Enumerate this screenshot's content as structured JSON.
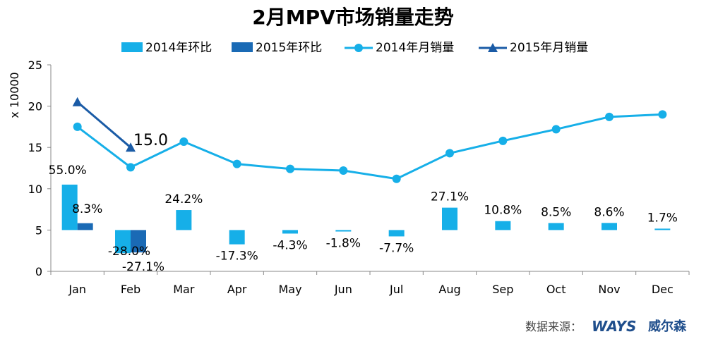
{
  "chart_data": {
    "type": "bar",
    "title": "2月MPV市场销量走势",
    "ylabel": "x 10000",
    "xlabel": "",
    "ylim": [
      0,
      25
    ],
    "yticks": [
      0,
      5,
      10,
      15,
      20,
      25
    ],
    "categories": [
      "Jan",
      "Feb",
      "Mar",
      "Apr",
      "May",
      "Jun",
      "Jul",
      "Aug",
      "Sep",
      "Oct",
      "Nov",
      "Dec"
    ],
    "bar_baseline": 5,
    "bar_scale_per_percent": 0.1,
    "bar_series": [
      {
        "name": "2014年环比",
        "color": "#16AFE8",
        "values": [
          55.0,
          -28.0,
          24.2,
          -17.3,
          -4.3,
          -1.8,
          -7.7,
          27.1,
          10.8,
          8.5,
          8.6,
          1.7
        ],
        "labels": [
          "55.0%",
          "-28.0%",
          "24.2%",
          "-17.3%",
          "-4.3%",
          "-1.8%",
          "-7.7%",
          "27.1%",
          "10.8%",
          "8.5%",
          "8.6%",
          "1.7%"
        ]
      },
      {
        "name": "2015年环比",
        "color": "#1A6AB5",
        "values": [
          8.3,
          -27.1,
          null,
          null,
          null,
          null,
          null,
          null,
          null,
          null,
          null,
          null
        ],
        "labels": [
          "8.3%",
          "-27.1%",
          "",
          "",
          "",
          "",
          "",
          "",
          "",
          "",
          "",
          ""
        ]
      }
    ],
    "line_series": [
      {
        "name": "2014年月销量",
        "color": "#16AFE8",
        "marker": "circle",
        "values": [
          17.5,
          12.6,
          15.7,
          13.0,
          12.4,
          12.2,
          11.2,
          14.3,
          15.8,
          17.2,
          18.7,
          19.0
        ]
      },
      {
        "name": "2015年月销量",
        "color": "#1A5BA6",
        "marker": "triangle",
        "values": [
          20.5,
          15.0,
          null,
          null,
          null,
          null,
          null,
          null,
          null,
          null,
          null,
          null
        ],
        "point_label": "15.0"
      }
    ],
    "legend_position": "top",
    "grid": false
  },
  "footer": {
    "source_label": "数据来源：",
    "brand": "WAYS",
    "brand_cn": "威尔森"
  }
}
